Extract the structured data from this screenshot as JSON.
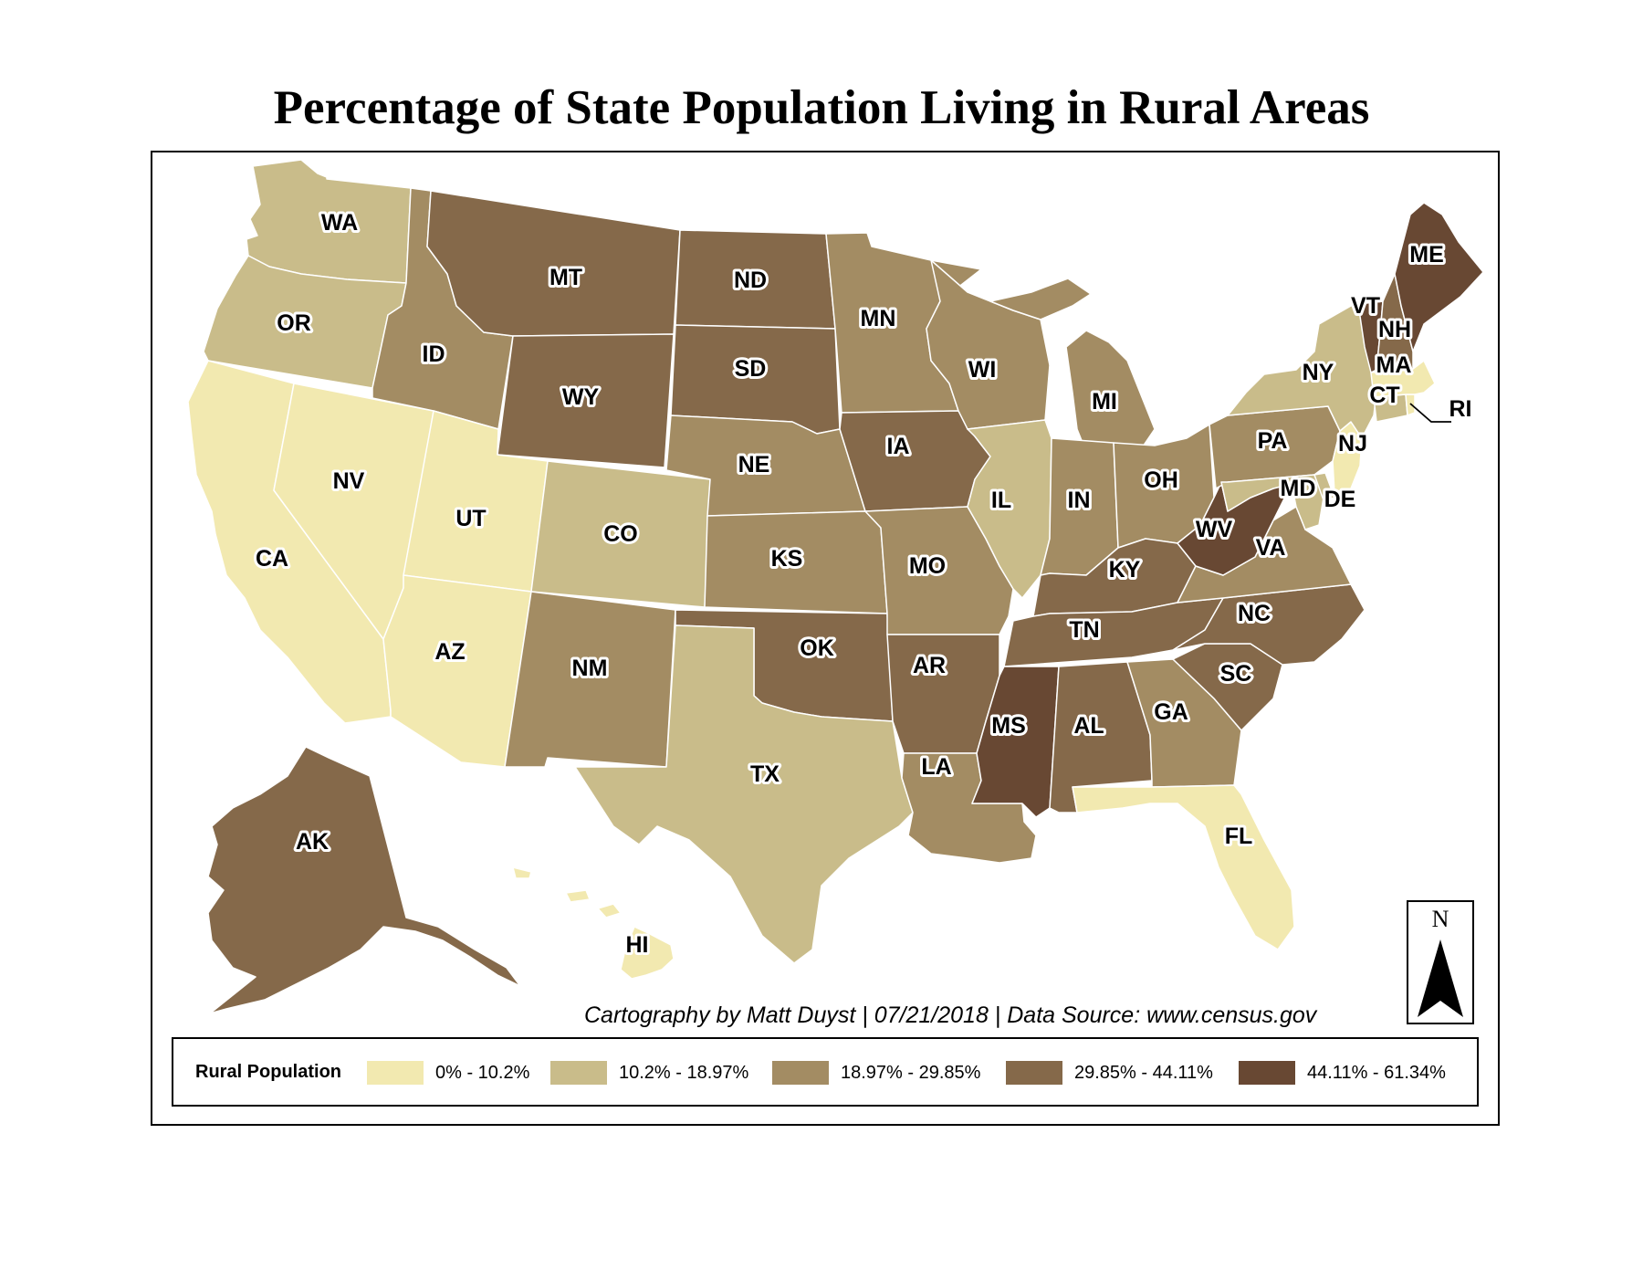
{
  "title": "Percentage of State Population Living in Rural Areas",
  "credit": "Cartography by Matt Duyst | 07/21/2018 | Data Source: www.census.gov",
  "north_arrow": {
    "letter": "N",
    "icon": "north-arrow-icon"
  },
  "legend": {
    "title": "Rural Population",
    "classes": [
      {
        "label": "0% - 10.2%",
        "color": "#f2e9b0"
      },
      {
        "label": "10.2% - 18.97%",
        "color": "#c9bc8a"
      },
      {
        "label": "18.97% - 29.85%",
        "color": "#a38c63"
      },
      {
        "label": "29.85% - 44.11%",
        "color": "#85694a"
      },
      {
        "label": "44.11% - 61.34%",
        "color": "#684833"
      }
    ]
  },
  "states": [
    {
      "abbr": "WA",
      "class": 1
    },
    {
      "abbr": "OR",
      "class": 1
    },
    {
      "abbr": "CA",
      "class": 0
    },
    {
      "abbr": "NV",
      "class": 0
    },
    {
      "abbr": "ID",
      "class": 2
    },
    {
      "abbr": "MT",
      "class": 3
    },
    {
      "abbr": "WY",
      "class": 3
    },
    {
      "abbr": "UT",
      "class": 0
    },
    {
      "abbr": "AZ",
      "class": 0
    },
    {
      "abbr": "CO",
      "class": 1
    },
    {
      "abbr": "NM",
      "class": 2
    },
    {
      "abbr": "ND",
      "class": 3
    },
    {
      "abbr": "SD",
      "class": 3
    },
    {
      "abbr": "NE",
      "class": 2
    },
    {
      "abbr": "KS",
      "class": 2
    },
    {
      "abbr": "OK",
      "class": 3
    },
    {
      "abbr": "TX",
      "class": 1
    },
    {
      "abbr": "MN",
      "class": 2
    },
    {
      "abbr": "IA",
      "class": 3
    },
    {
      "abbr": "MO",
      "class": 2
    },
    {
      "abbr": "AR",
      "class": 3
    },
    {
      "abbr": "LA",
      "class": 2
    },
    {
      "abbr": "WI",
      "class": 2
    },
    {
      "abbr": "IL",
      "class": 1
    },
    {
      "abbr": "MI",
      "class": 2
    },
    {
      "abbr": "IN",
      "class": 2
    },
    {
      "abbr": "OH",
      "class": 2
    },
    {
      "abbr": "KY",
      "class": 3
    },
    {
      "abbr": "TN",
      "class": 3
    },
    {
      "abbr": "MS",
      "class": 4
    },
    {
      "abbr": "AL",
      "class": 3
    },
    {
      "abbr": "GA",
      "class": 2
    },
    {
      "abbr": "FL",
      "class": 0
    },
    {
      "abbr": "SC",
      "class": 3
    },
    {
      "abbr": "NC",
      "class": 3
    },
    {
      "abbr": "VA",
      "class": 2
    },
    {
      "abbr": "WV",
      "class": 4
    },
    {
      "abbr": "MD",
      "class": 1
    },
    {
      "abbr": "DE",
      "class": 1
    },
    {
      "abbr": "PA",
      "class": 2
    },
    {
      "abbr": "NY",
      "class": 1
    },
    {
      "abbr": "NJ",
      "class": 0
    },
    {
      "abbr": "CT",
      "class": 1
    },
    {
      "abbr": "RI",
      "class": 0
    },
    {
      "abbr": "MA",
      "class": 0
    },
    {
      "abbr": "VT",
      "class": 4
    },
    {
      "abbr": "NH",
      "class": 3
    },
    {
      "abbr": "ME",
      "class": 4
    },
    {
      "abbr": "AK",
      "class": 3
    },
    {
      "abbr": "HI",
      "class": 0
    }
  ]
}
